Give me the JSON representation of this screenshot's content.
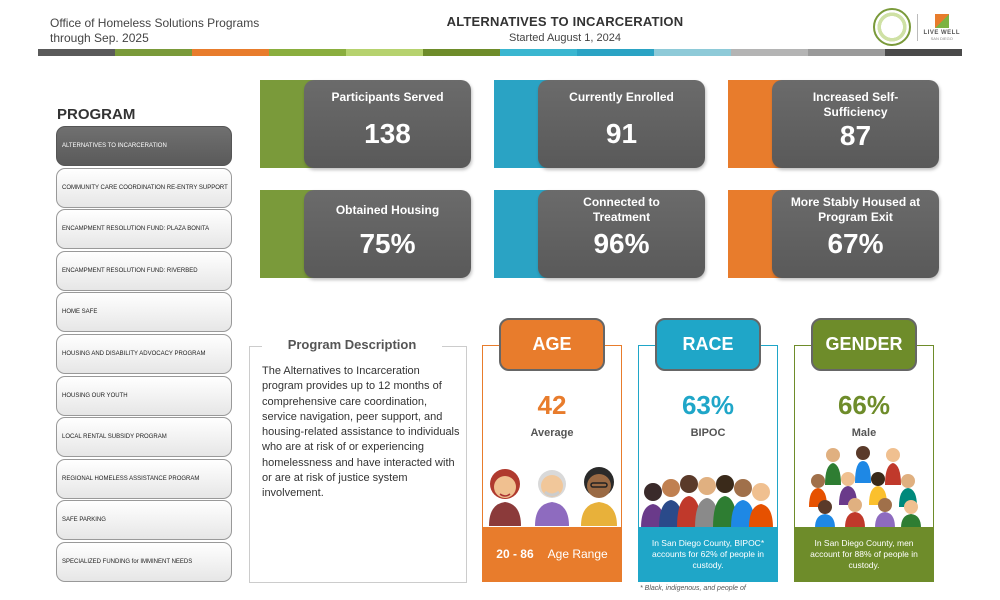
{
  "header": {
    "org_line1": "Office of Homeless Solutions Programs",
    "org_line2": "through Sep. 2025",
    "title": "ALTERNATIVES TO INCARCERATION",
    "subtitle": "Started August 1, 2024",
    "logo_text": "LIVE WELL",
    "logo_subtext": "SAN DIEGO"
  },
  "stripe_colors": [
    "#5a5a5a",
    "#7a9a3a",
    "#e87c2c",
    "#8aae3e",
    "#b6d26e",
    "#6e8c2a",
    "#3ab6d0",
    "#2aa3c4",
    "#8ecad8",
    "#b4b4b4",
    "#9a9a9a",
    "#4a4a4a"
  ],
  "program": {
    "title": "PROGRAM",
    "items": [
      {
        "label": "ALTERNATIVES TO INCARCERATION",
        "active": true
      },
      {
        "label": "COMMUNITY CARE COORDINATION RE-ENTRY SUPPORT",
        "active": false
      },
      {
        "label": "ENCAMPMENT RESOLUTION FUND: PLAZA BONITA",
        "active": false
      },
      {
        "label": "ENCAMPMENT RESOLUTION FUND: RIVERBED",
        "active": false
      },
      {
        "label": "HOME SAFE",
        "active": false
      },
      {
        "label": "HOUSING AND DISABILITY ADVOCACY PROGRAM",
        "active": false
      },
      {
        "label": "HOUSING OUR YOUTH",
        "active": false
      },
      {
        "label": "LOCAL RENTAL SUBSIDY PROGRAM",
        "active": false
      },
      {
        "label": "REGIONAL HOMELESS ASSISTANCE PROGRAM",
        "active": false
      },
      {
        "label": "SAFE PARKING",
        "active": false
      },
      {
        "label": "SPECIALIZED FUNDING for IMMINENT NEEDS",
        "active": false
      }
    ]
  },
  "stats": {
    "participants": {
      "label": "Participants Served",
      "value": "138",
      "accent": "#7a9a3a"
    },
    "enrolled": {
      "label": "Currently Enrolled",
      "value": "91",
      "accent": "#2aa3c4"
    },
    "self_sufficiency": {
      "label": "Increased Self-Sufficiency",
      "value": "87",
      "accent": "#e87c2c"
    },
    "housing": {
      "label": "Obtained Housing",
      "value": "75%",
      "accent": "#7a9a3a"
    },
    "treatment": {
      "label": "Connected to Treatment",
      "value": "96%",
      "accent": "#2aa3c4"
    },
    "stably_housed": {
      "label": "More Stably Housed at Program Exit",
      "value": "67%",
      "accent": "#e87c2c"
    }
  },
  "description": {
    "title": "Program Description",
    "text": "The Alternatives to Incarceration program provides up to 12 months of comprehensive care coordination, service navigation, peer support, and housing-related assistance to individuals who are at risk of or experiencing homelessness and have interacted with or are at risk of justice system involvement."
  },
  "age": {
    "title": "AGE",
    "value": "42",
    "sub": "Average",
    "range": "20 - 86",
    "range_label": "Age Range",
    "color": "#e87c2c"
  },
  "race": {
    "title": "RACE",
    "value": "63%",
    "sub": "BIPOC",
    "note": "In San Diego County, BIPOC* accounts for 62% of people in custody.",
    "footnote": "* Black, indigenous, and people of",
    "color": "#1fa6c8"
  },
  "gender": {
    "title": "GENDER",
    "value": "66%",
    "sub": "Male",
    "note": "In San Diego County, men account for 88% of people in custody.",
    "color": "#6e8c2a"
  }
}
